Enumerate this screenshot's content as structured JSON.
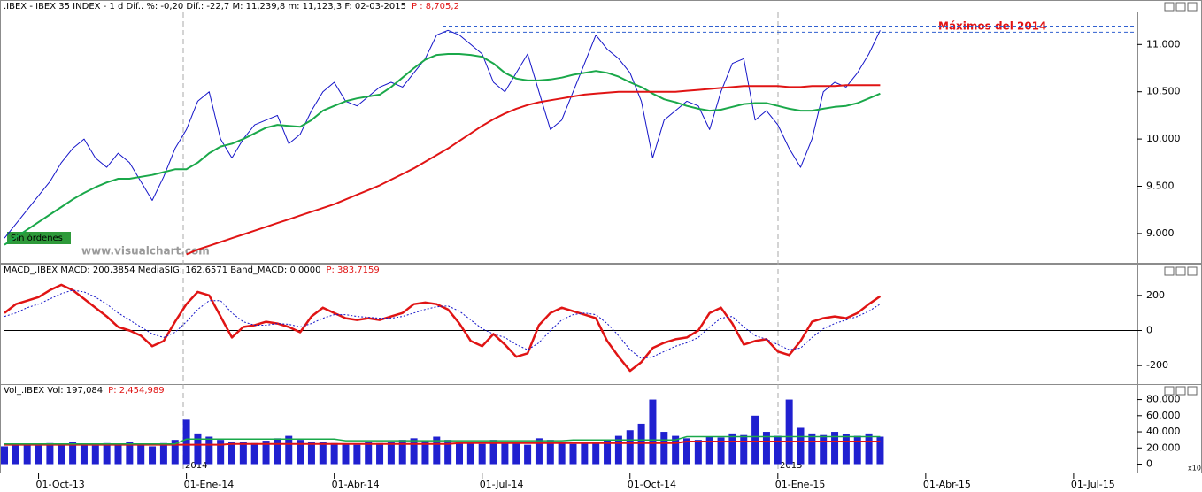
{
  "chart_data": [
    {
      "type": "line",
      "header": ".IBEX - IBEX 35 INDEX -  1 d Dif.. %: -0,20 Dif.: -22,7 M: 11,239,8 m: 11,123,3 F: 02-03-2015",
      "header_p": "P : 8,705,2",
      "annotations": [
        "Máximos del 2014",
        "Sin órdenes",
        "www.visualchart.com"
      ],
      "hlines": [
        11195,
        11130
      ],
      "ylim": [
        8690,
        11340
      ],
      "yticks": [
        {
          "value": 9000,
          "label": "9.000"
        },
        {
          "value": 9500,
          "label": "9.500"
        },
        {
          "value": 10000,
          "label": "10.000"
        },
        {
          "value": 10500,
          "label": "10.500"
        },
        {
          "value": 11000,
          "label": "11.000"
        }
      ],
      "series": [
        {
          "name": "IBEX 35 INDEX",
          "color": "#1414c8",
          "width": 1,
          "values": [
            8950,
            9100,
            9250,
            9400,
            9550,
            9750,
            9900,
            10000,
            9800,
            9700,
            9850,
            9750,
            9550,
            9350,
            9600,
            9900,
            10100,
            10400,
            10500,
            10000,
            9800,
            10000,
            10150,
            10200,
            10250,
            9950,
            10050,
            10300,
            10500,
            10600,
            10400,
            10350,
            10450,
            10550,
            10600,
            10550,
            10700,
            10850,
            11100,
            11150,
            11100,
            11000,
            10900,
            10600,
            10500,
            10700,
            10900,
            10500,
            10100,
            10200,
            10500,
            10800,
            11100,
            10950,
            10850,
            10700,
            10400,
            9800,
            10200,
            10300,
            10400,
            10350,
            10100,
            10500,
            10800,
            10850,
            10200,
            10300,
            10150,
            9900,
            9700,
            10000,
            10500,
            10600,
            10550,
            10700,
            10900,
            11150
          ]
        },
        {
          "color": "#1aa84a",
          "width": 2,
          "values": [
            8880,
            8960,
            9040,
            9120,
            9200,
            9280,
            9360,
            9430,
            9490,
            9540,
            9580,
            9580,
            9600,
            9620,
            9650,
            9680,
            9680,
            9750,
            9850,
            9920,
            9950,
            10000,
            10060,
            10120,
            10150,
            10140,
            10130,
            10200,
            10300,
            10350,
            10400,
            10430,
            10450,
            10470,
            10550,
            10650,
            10750,
            10840,
            10890,
            10900,
            10900,
            10890,
            10870,
            10800,
            10700,
            10640,
            10620,
            10620,
            10630,
            10650,
            10680,
            10700,
            10720,
            10700,
            10660,
            10600,
            10550,
            10480,
            10420,
            10390,
            10350,
            10320,
            10300,
            10310,
            10340,
            10370,
            10380,
            10380,
            10350,
            10320,
            10300,
            10300,
            10320,
            10340,
            10350,
            10380,
            10430,
            10480
          ]
        },
        {
          "color": "#e01414",
          "width": 2,
          "values": [
            null,
            null,
            null,
            null,
            null,
            null,
            null,
            null,
            null,
            null,
            null,
            null,
            null,
            null,
            null,
            null,
            8780,
            8830,
            8870,
            8910,
            8950,
            8990,
            9030,
            9070,
            9110,
            9150,
            9190,
            9230,
            9270,
            9310,
            9360,
            9410,
            9460,
            9510,
            9570,
            9630,
            9690,
            9760,
            9830,
            9900,
            9980,
            10060,
            10140,
            10210,
            10270,
            10320,
            10360,
            10390,
            10410,
            10430,
            10450,
            10470,
            10480,
            10490,
            10500,
            10500,
            10500,
            10500,
            10500,
            10500,
            10510,
            10520,
            10530,
            10540,
            10550,
            10560,
            10560,
            10560,
            10560,
            10550,
            10550,
            10560,
            10560,
            10560,
            10570,
            10570,
            10570,
            10570
          ]
        }
      ]
    },
    {
      "type": "line",
      "header": "MACD_.IBEX MACD: 200,3854 MediaSIG: 162,6571 Band_MACD: 0,0000",
      "header_p": "P: 383,7159",
      "hline": 0,
      "ylim": [
        -300,
        310
      ],
      "yticks": [
        200,
        0,
        -200
      ],
      "series": [
        {
          "name": "MACD",
          "color": "#e01414",
          "width": 2.5,
          "values": [
            100,
            150,
            170,
            190,
            230,
            260,
            230,
            180,
            130,
            80,
            20,
            0,
            -30,
            -90,
            -60,
            50,
            150,
            220,
            200,
            80,
            -40,
            20,
            30,
            50,
            40,
            20,
            -10,
            80,
            130,
            100,
            70,
            60,
            70,
            60,
            80,
            100,
            150,
            160,
            150,
            120,
            40,
            -60,
            -90,
            -20,
            -80,
            -150,
            -130,
            30,
            100,
            130,
            110,
            90,
            70,
            -60,
            -150,
            -230,
            -180,
            -100,
            -70,
            -50,
            -40,
            0,
            100,
            130,
            40,
            -80,
            -60,
            -50,
            -120,
            -140,
            -60,
            50,
            70,
            80,
            70,
            100,
            150,
            195
          ]
        },
        {
          "name": "MediaSIG",
          "color": "#1414c8",
          "width": 1,
          "dashed": true,
          "values": [
            80,
            100,
            130,
            150,
            180,
            210,
            230,
            220,
            190,
            150,
            100,
            60,
            20,
            -20,
            -40,
            -10,
            50,
            120,
            170,
            170,
            100,
            50,
            30,
            30,
            40,
            35,
            20,
            40,
            70,
            90,
            90,
            80,
            75,
            70,
            70,
            80,
            100,
            120,
            135,
            140,
            110,
            60,
            10,
            -20,
            -40,
            -80,
            -110,
            -70,
            0,
            60,
            90,
            100,
            90,
            40,
            -30,
            -110,
            -160,
            -150,
            -120,
            -90,
            -70,
            -40,
            20,
            70,
            80,
            20,
            -30,
            -50,
            -80,
            -110,
            -100,
            -40,
            10,
            40,
            60,
            80,
            110,
            150
          ]
        }
      ]
    },
    {
      "type": "bar",
      "header": "Vol_.IBEX Vol: 197,084",
      "header_p": "P: 2,454,989",
      "annotations": [
        "2014",
        "2015",
        "x10"
      ],
      "ylim": [
        -6000,
        85000
      ],
      "yticks": [
        {
          "value": 80000,
          "label": "80.000"
        },
        {
          "value": 60000,
          "label": "60.000"
        },
        {
          "value": 40000,
          "label": "40.000"
        },
        {
          "value": 20000,
          "label": "20.000"
        },
        0
      ],
      "categories": [
        null,
        null,
        null,
        "01-Oct-13",
        null,
        null,
        null,
        null,
        null,
        null,
        null,
        null,
        null,
        null,
        null,
        null,
        "01-Ene-14",
        null,
        null,
        null,
        null,
        null,
        null,
        null,
        null,
        null,
        null,
        null,
        null,
        "01-Abr-14",
        null,
        null,
        null,
        null,
        null,
        null,
        null,
        null,
        null,
        null,
        null,
        null,
        "01-Jul-14",
        null,
        null,
        null,
        null,
        null,
        null,
        null,
        null,
        null,
        null,
        null,
        null,
        "01-Oct-14",
        null,
        null,
        null,
        null,
        null,
        null,
        null,
        null,
        null,
        null,
        null,
        null,
        "01-Ene-15",
        null,
        null,
        null,
        null,
        null,
        null,
        null,
        null,
        null,
        null,
        null,
        null,
        "01-Abr-15",
        null,
        null,
        null,
        null,
        null,
        null,
        null,
        null,
        null,
        null,
        null,
        null,
        "01-Jul-15",
        null,
        null,
        null,
        null
      ],
      "series": [
        {
          "name": "Vol",
          "color": "#2020d0",
          "values": [
            22000,
            24000,
            25000,
            23000,
            26000,
            24000,
            27000,
            25000,
            23000,
            26000,
            24000,
            28000,
            25000,
            22000,
            26000,
            30000,
            55000,
            38000,
            34000,
            30000,
            28000,
            27000,
            26000,
            29000,
            32000,
            35000,
            30000,
            28000,
            27000,
            26000,
            25000,
            24000,
            27000,
            26000,
            28000,
            30000,
            32000,
            29000,
            34000,
            30000,
            27000,
            26000,
            25000,
            30000,
            28000,
            26000,
            24000,
            32000,
            30000,
            27000,
            25000,
            28000,
            26000,
            30000,
            35000,
            42000,
            50000,
            80000,
            40000,
            35000,
            32000,
            30000,
            34000,
            33000,
            38000,
            36000,
            60000,
            40000,
            35000,
            80000,
            45000,
            38000,
            36000,
            40000,
            37000,
            35000,
            38000,
            34000,
            null,
            null,
            null,
            null,
            null,
            null,
            null,
            null,
            null,
            null,
            null,
            null,
            null,
            null,
            null,
            null,
            null,
            null,
            null,
            null,
            null
          ]
        },
        {
          "type": "line",
          "color": "#e01414",
          "width": 2,
          "values": [
            24000,
            24000,
            24000,
            24000,
            24000,
            24000,
            24000,
            24000,
            24000,
            24000,
            24000,
            24000,
            24000,
            24000,
            24000,
            24000,
            24000,
            24000,
            24000,
            24000,
            25000,
            25000,
            25000,
            25000,
            25000,
            25000,
            25000,
            25000,
            25000,
            25000,
            25000,
            25000,
            25000,
            25000,
            25000,
            25000,
            25000,
            25000,
            25000,
            25000,
            26000,
            26000,
            26000,
            26000,
            26000,
            26000,
            26000,
            26000,
            26000,
            26000,
            26000,
            26000,
            26000,
            26000,
            26000,
            26000,
            26000,
            26000,
            26000,
            26000,
            28000,
            28000,
            28000,
            28000,
            28000,
            28000,
            28000,
            28000,
            28000,
            28000,
            28000,
            28000,
            28000,
            28000,
            28000,
            28000,
            28000,
            28000,
            null,
            null,
            null,
            null,
            null,
            null,
            null,
            null,
            null,
            null,
            null,
            null,
            null,
            null,
            null,
            null,
            null,
            null,
            null,
            null,
            null
          ]
        },
        {
          "type": "line",
          "color": "#1aa84a",
          "width": 1.5,
          "values": [
            25000,
            25000,
            25000,
            25000,
            25000,
            25000,
            25000,
            25000,
            25000,
            25000,
            25000,
            25000,
            25000,
            25000,
            25000,
            25000,
            31000,
            31000,
            31000,
            31000,
            31000,
            31000,
            31000,
            31000,
            31000,
            31000,
            31000,
            31000,
            31000,
            31000,
            29000,
            29000,
            29000,
            29000,
            29000,
            29000,
            29000,
            29000,
            29000,
            29000,
            29000,
            29000,
            29000,
            29000,
            29000,
            29000,
            29000,
            29000,
            29000,
            29000,
            30000,
            30000,
            30000,
            30000,
            30000,
            30000,
            30000,
            30000,
            30000,
            30000,
            34000,
            34000,
            34000,
            34000,
            34000,
            34000,
            34000,
            34000,
            34000,
            34000,
            34000,
            34000,
            34000,
            34000,
            34000,
            34000,
            34000,
            34000,
            null,
            null,
            null,
            null,
            null,
            null,
            null,
            null,
            null,
            null,
            null,
            null,
            null,
            null,
            null,
            null,
            null,
            null,
            null,
            null,
            null
          ]
        }
      ]
    }
  ]
}
